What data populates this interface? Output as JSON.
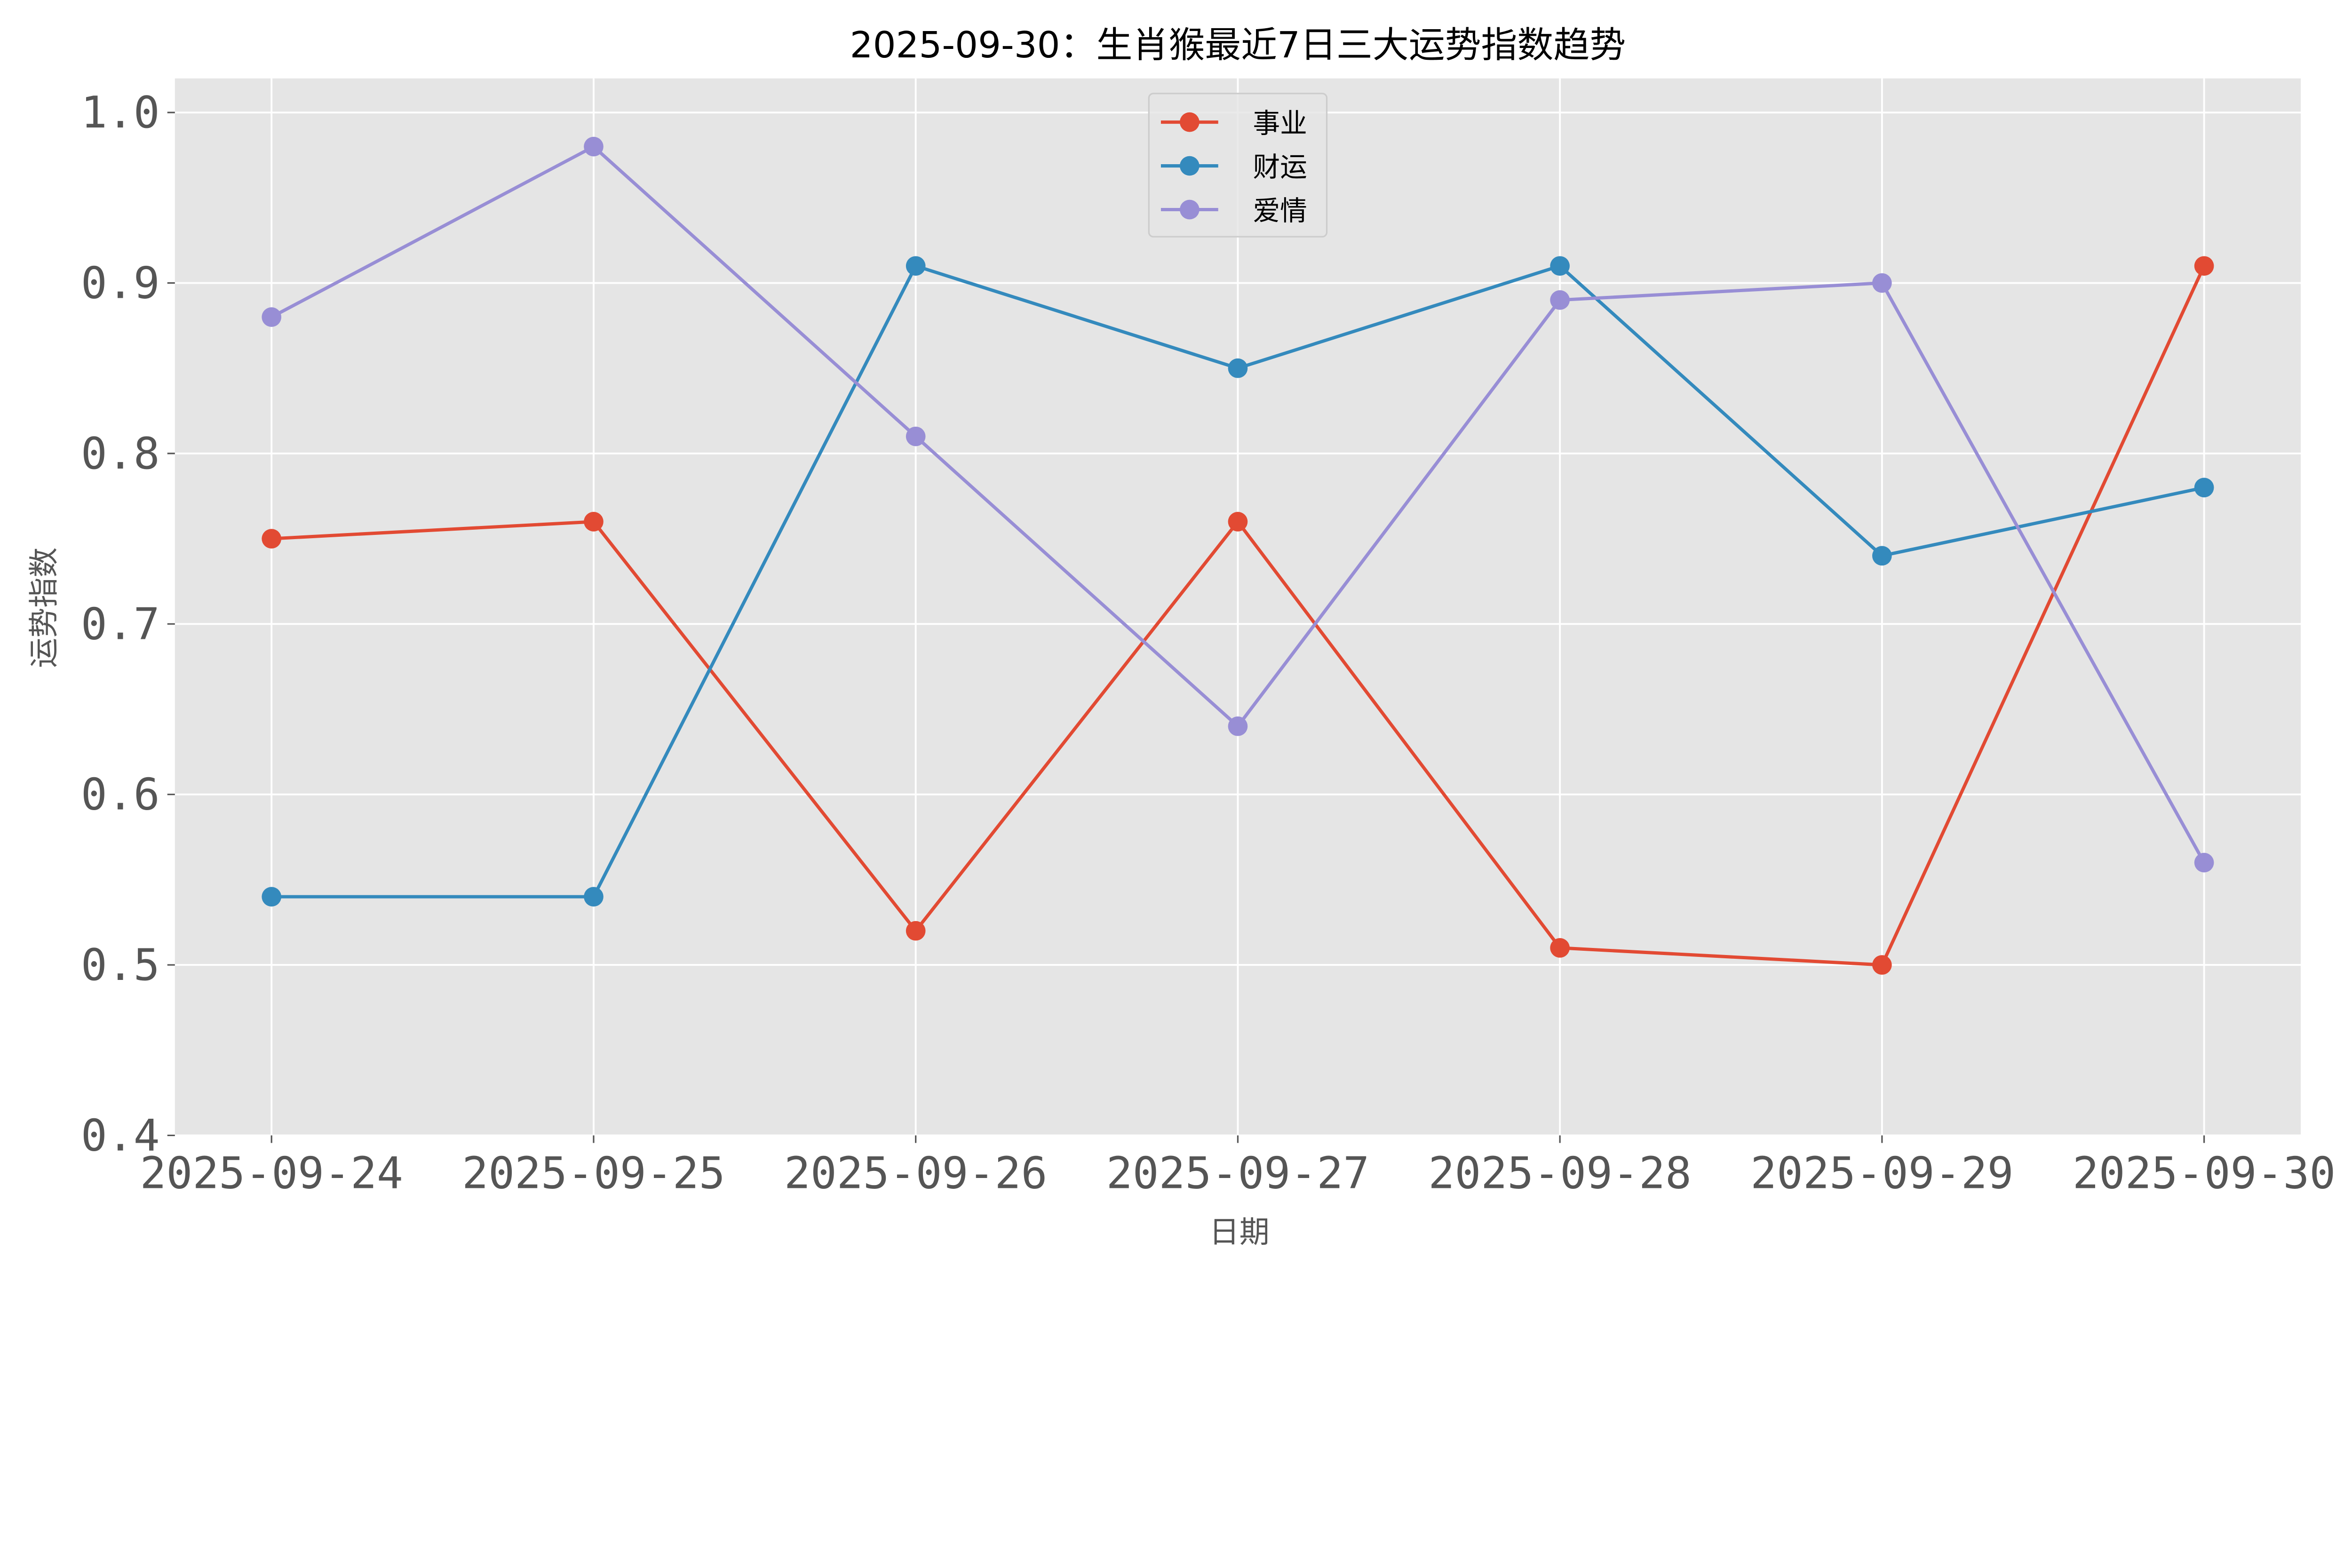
{
  "chart_data": {
    "type": "line",
    "title": "2025-09-30：生肖猴最近7日三大运势指数趋势",
    "xlabel": "日期",
    "ylabel": "运势指数",
    "x": [
      "2025-09-24",
      "2025-09-25",
      "2025-09-26",
      "2025-09-27",
      "2025-09-28",
      "2025-09-29",
      "2025-09-30"
    ],
    "ylim": [
      0.4,
      1.02
    ],
    "yticks": [
      "0.4",
      "0.5",
      "0.6",
      "0.7",
      "0.8",
      "0.9",
      "1.0"
    ],
    "grid": true,
    "legend_position": "upper-center",
    "series": [
      {
        "name": "事业",
        "color": "#E24A33",
        "values": [
          0.75,
          0.76,
          0.52,
          0.76,
          0.51,
          0.5,
          0.91
        ]
      },
      {
        "name": "财运",
        "color": "#348ABD",
        "values": [
          0.54,
          0.54,
          0.91,
          0.85,
          0.91,
          0.74,
          0.78
        ]
      },
      {
        "name": "爱情",
        "color": "#988ED5",
        "values": [
          0.88,
          0.98,
          0.81,
          0.64,
          0.89,
          0.9,
          0.56
        ]
      }
    ]
  }
}
